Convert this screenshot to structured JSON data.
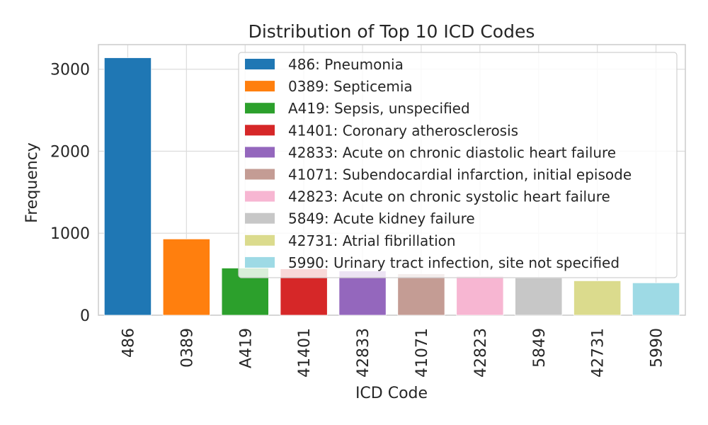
{
  "chart_data": {
    "type": "bar",
    "title": "Distribution of Top 10 ICD Codes",
    "xlabel": "ICD Code",
    "ylabel": "Frequency",
    "ylim": [
      0,
      3300
    ],
    "yticks": [
      0,
      1000,
      2000,
      3000
    ],
    "grid": true,
    "legend_position": "top-right",
    "categories": [
      "486",
      "0389",
      "A419",
      "41401",
      "42833",
      "41071",
      "42823",
      "5849",
      "42731",
      "5990"
    ],
    "values": [
      3140,
      930,
      575,
      565,
      540,
      505,
      480,
      455,
      420,
      395
    ],
    "colors": [
      "#1f77b4",
      "#ff7f0e",
      "#2ca02c",
      "#d62728",
      "#9467bd",
      "#c49c94",
      "#f7b6d2",
      "#c7c7c7",
      "#dbdb8d",
      "#9edae5"
    ],
    "legend_entries": [
      "486: Pneumonia",
      "0389: Septicemia",
      "A419: Sepsis, unspecified",
      "41401: Coronary atherosclerosis",
      "42833: Acute on chronic diastolic heart failure",
      "41071: Subendocardial infarction, initial episode",
      "42823: Acute on chronic systolic heart failure",
      "5849: Acute kidney failure",
      "42731: Atrial fibrillation",
      "5990: Urinary tract infection, site not specified"
    ]
  }
}
